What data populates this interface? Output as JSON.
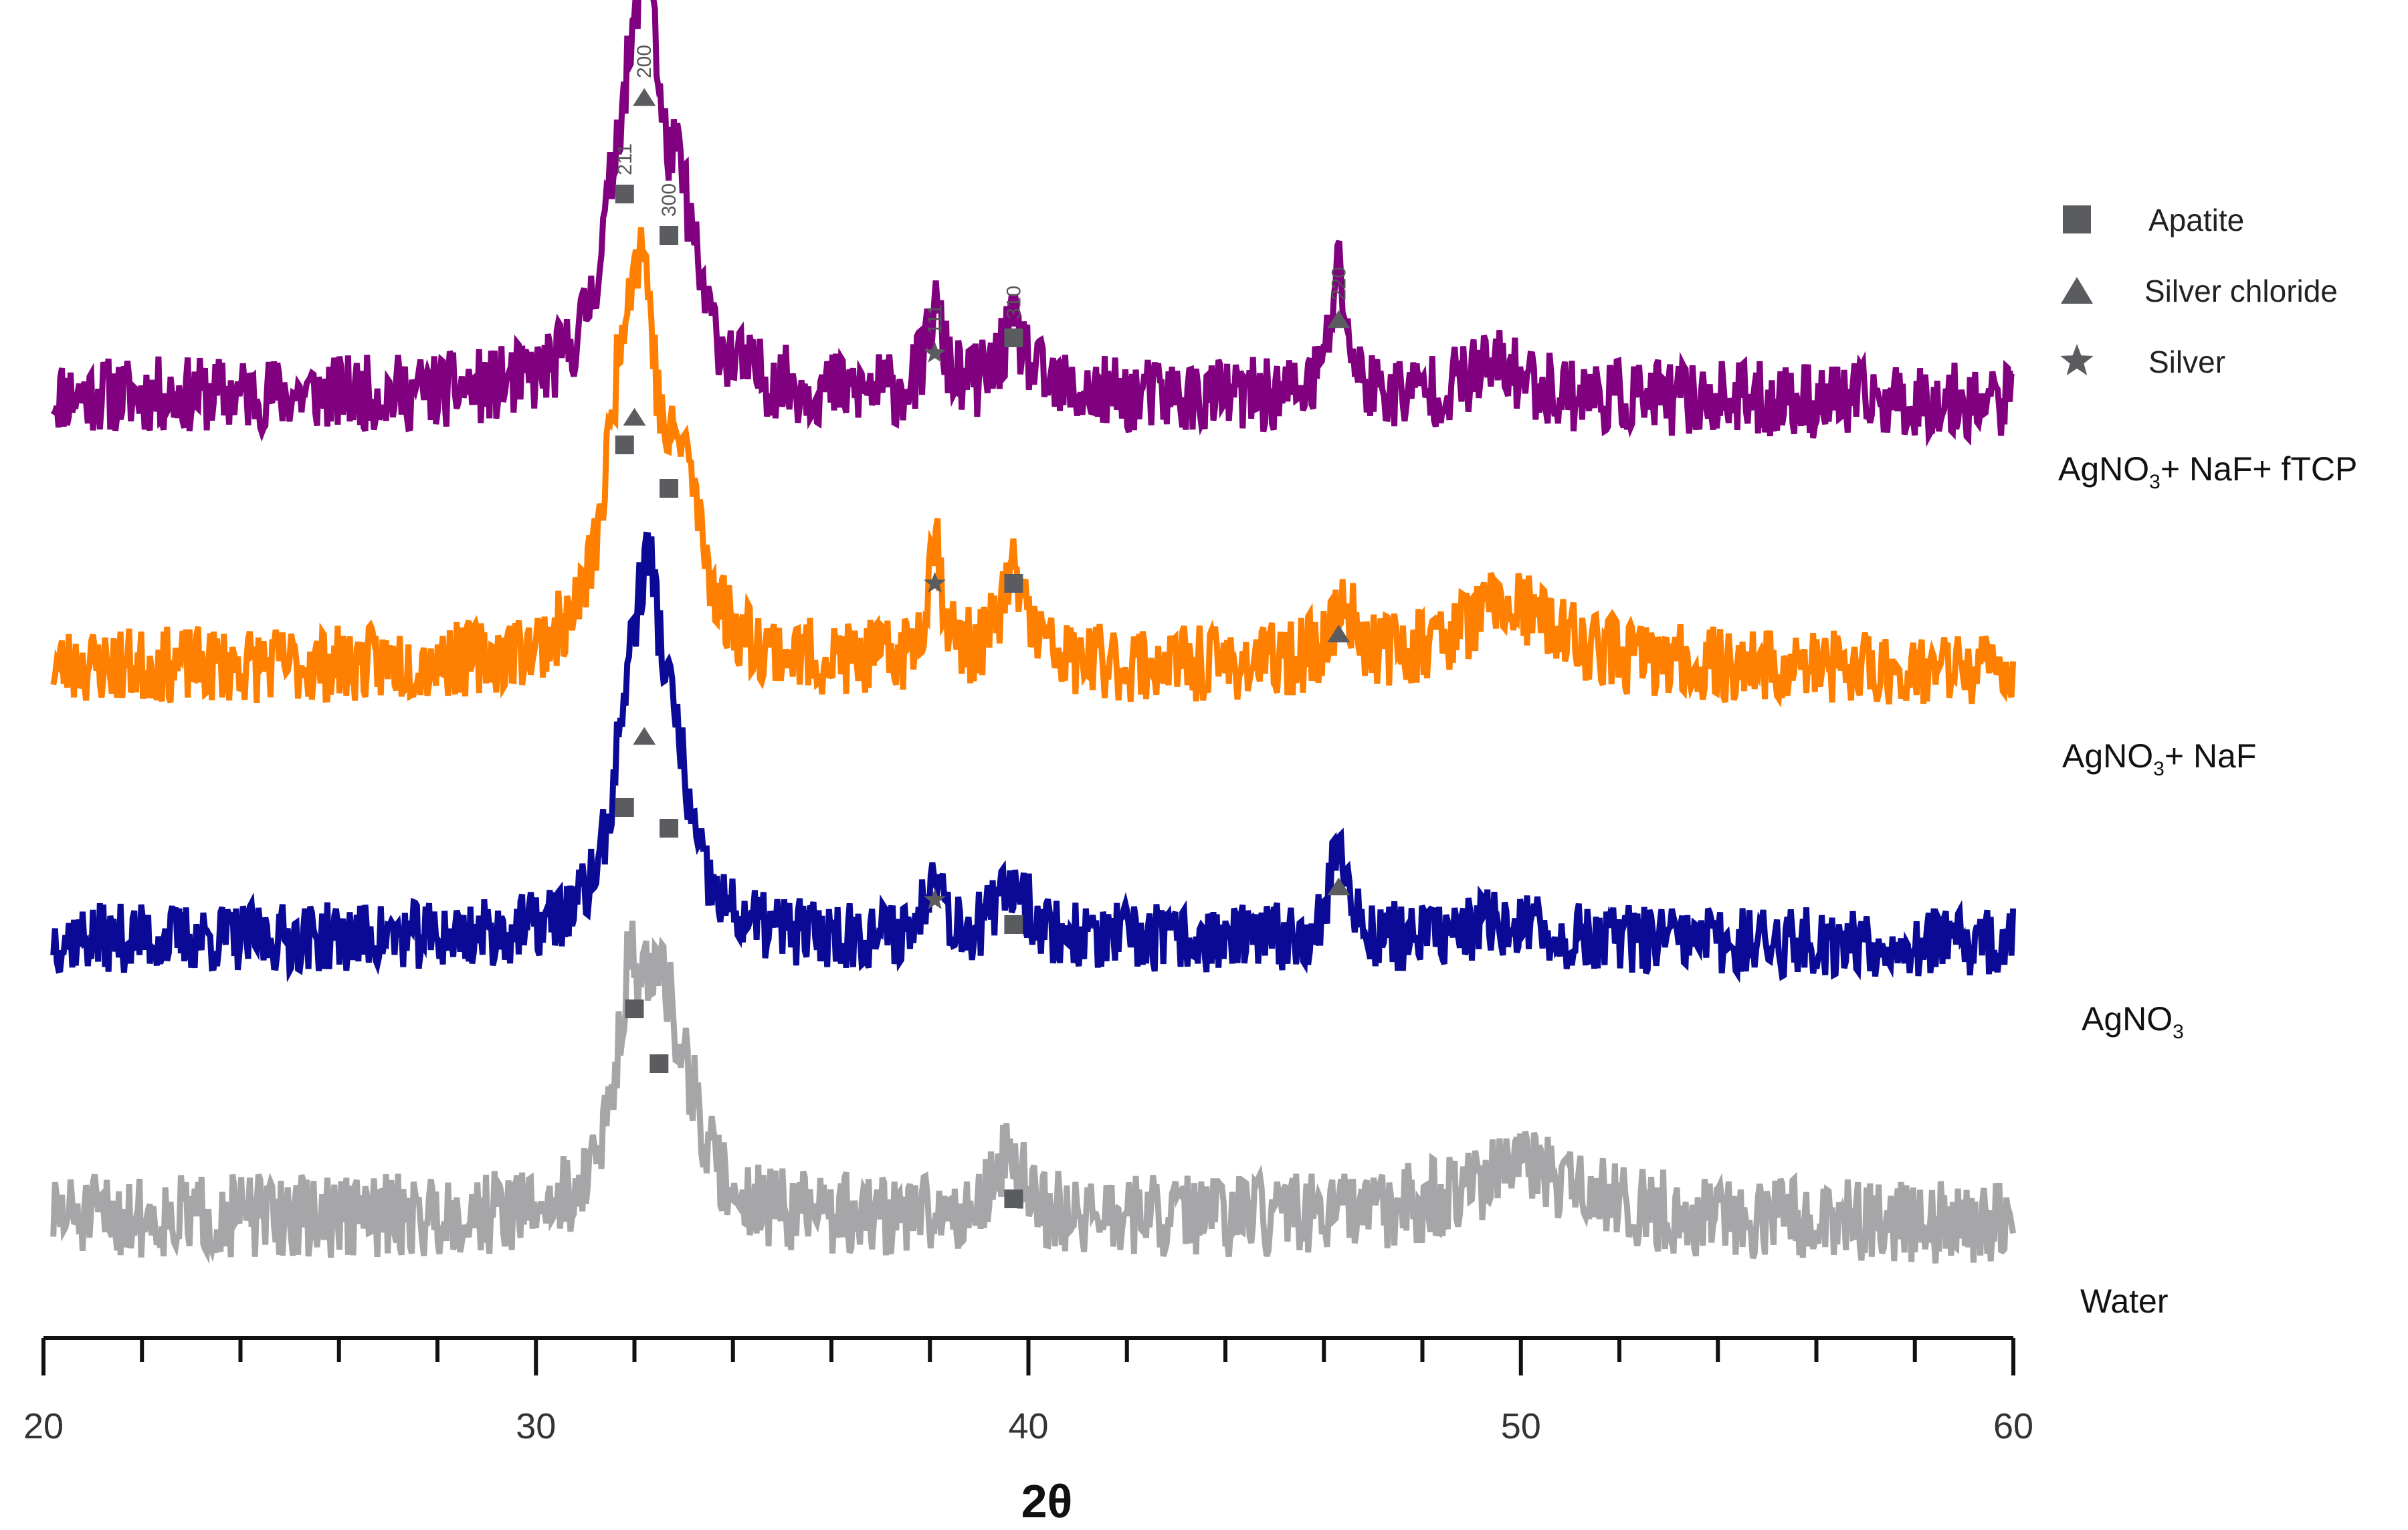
{
  "chart_data": {
    "type": "line",
    "title": "",
    "xlabel": "2θ",
    "ylabel": "",
    "xlim": [
      20,
      60
    ],
    "x_ticks": [
      "20",
      "30",
      "40",
      "50",
      "60"
    ],
    "grid": false,
    "legend_position": "top-right",
    "colors": {
      "water": "#a6a6a8",
      "agno3": "#0a0a96",
      "agno3_naf": "#ff8000",
      "agno3_naf_ftcp": "#800080",
      "marker": "#5a5c60",
      "axis": "#111111"
    },
    "legend": [
      {
        "label": "Apatite",
        "marker": "square"
      },
      {
        "label": "Silver chloride",
        "marker": "triangle"
      },
      {
        "label": "Silver",
        "marker": "star"
      }
    ],
    "series": [
      {
        "name": "AgNO₃+ NaF+ fTCP",
        "label_main": "AgNO",
        "label_sub": "3",
        "label_rest": "+ NaF+ fTCP",
        "key": "agno3_naf_ftcp",
        "baseline": 0.62,
        "noise": 0.55,
        "peaks": [
          {
            "x": 31.8,
            "height": 3.6,
            "width": 0.5
          },
          {
            "x": 32.25,
            "height": 5.5,
            "width": 0.2
          },
          {
            "x": 32.9,
            "height": 2.6,
            "width": 0.45
          },
          {
            "x": 38.1,
            "height": 1.3,
            "width": 0.2
          },
          {
            "x": 39.7,
            "height": 1.0,
            "width": 0.35
          },
          {
            "x": 46.3,
            "height": 2.0,
            "width": 0.2
          },
          {
            "x": 49.5,
            "height": 0.5,
            "width": 0.8
          }
        ]
      },
      {
        "name": "AgNO₃+ NaF",
        "label_main": "AgNO",
        "label_sub": "3",
        "label_rest": "+ NaF",
        "key": "agno3_naf",
        "baseline": 0.52,
        "noise": 0.55,
        "peaks": [
          {
            "x": 31.8,
            "height": 4.1,
            "width": 0.45
          },
          {
            "x": 32.2,
            "height": 3.6,
            "width": 0.3
          },
          {
            "x": 33.0,
            "height": 2.6,
            "width": 0.45
          },
          {
            "x": 38.1,
            "height": 2.0,
            "width": 0.18
          },
          {
            "x": 39.7,
            "height": 1.4,
            "width": 0.35
          },
          {
            "x": 46.4,
            "height": 0.8,
            "width": 0.35
          },
          {
            "x": 49.7,
            "height": 1.0,
            "width": 1.3
          }
        ]
      },
      {
        "name": "AgNO₃",
        "label_main": "AgNO",
        "label_sub": "3",
        "label_rest": "",
        "key": "agno3",
        "baseline": 0.5,
        "noise": 0.5,
        "peaks": [
          {
            "x": 31.9,
            "height": 2.8,
            "width": 0.4
          },
          {
            "x": 32.3,
            "height": 3.8,
            "width": 0.3
          },
          {
            "x": 32.8,
            "height": 2.2,
            "width": 0.4
          },
          {
            "x": 38.1,
            "height": 1.3,
            "width": 0.18
          },
          {
            "x": 39.7,
            "height": 0.9,
            "width": 0.35
          },
          {
            "x": 46.3,
            "height": 1.6,
            "width": 0.2
          },
          {
            "x": 49.6,
            "height": 0.3,
            "width": 0.8
          }
        ]
      },
      {
        "name": "Water",
        "label_main": "Water",
        "label_sub": "",
        "label_rest": "",
        "key": "water",
        "baseline": 0.75,
        "noise": 0.6,
        "peaks": [
          {
            "x": 31.9,
            "height": 3.2,
            "width": 0.35
          },
          {
            "x": 32.5,
            "height": 2.6,
            "width": 0.35
          },
          {
            "x": 33.0,
            "height": 1.5,
            "width": 0.45
          },
          {
            "x": 39.6,
            "height": 1.0,
            "width": 0.35
          },
          {
            "x": 50.0,
            "height": 0.8,
            "width": 1.6
          }
        ]
      }
    ],
    "annotations": [
      {
        "series": "agno3_naf_ftcp",
        "marker": "triangle",
        "x": 32.2,
        "label": "200"
      },
      {
        "series": "agno3_naf_ftcp",
        "marker": "square",
        "x": 31.8,
        "label": "211"
      },
      {
        "series": "agno3_naf_ftcp",
        "marker": "square",
        "x": 32.7,
        "label": "300"
      },
      {
        "series": "agno3_naf_ftcp",
        "marker": "star",
        "x": 38.1,
        "label": "111"
      },
      {
        "series": "agno3_naf_ftcp",
        "marker": "square",
        "x": 39.7,
        "label": "310"
      },
      {
        "series": "agno3_naf_ftcp",
        "marker": "triangle",
        "x": 46.3,
        "label": "220"
      },
      {
        "series": "agno3_naf",
        "marker": "triangle",
        "x": 32.0,
        "label": ""
      },
      {
        "series": "agno3_naf",
        "marker": "square",
        "x": 31.8,
        "label": ""
      },
      {
        "series": "agno3_naf",
        "marker": "square",
        "x": 32.7,
        "label": ""
      },
      {
        "series": "agno3_naf",
        "marker": "star",
        "x": 38.1,
        "label": ""
      },
      {
        "series": "agno3_naf",
        "marker": "square",
        "x": 39.7,
        "label": ""
      },
      {
        "series": "agno3_naf",
        "marker": "triangle",
        "x": 46.3,
        "label": ""
      },
      {
        "series": "agno3",
        "marker": "triangle",
        "x": 32.2,
        "label": ""
      },
      {
        "series": "agno3",
        "marker": "square",
        "x": 31.8,
        "label": ""
      },
      {
        "series": "agno3",
        "marker": "square",
        "x": 32.7,
        "label": ""
      },
      {
        "series": "agno3",
        "marker": "star",
        "x": 38.1,
        "label": ""
      },
      {
        "series": "agno3",
        "marker": "square",
        "x": 39.7,
        "label": ""
      },
      {
        "series": "agno3",
        "marker": "triangle",
        "x": 46.3,
        "label": ""
      },
      {
        "series": "water",
        "marker": "square",
        "x": 32.0,
        "label": ""
      },
      {
        "series": "water",
        "marker": "square",
        "x": 32.5,
        "label": ""
      },
      {
        "series": "water",
        "marker": "square",
        "x": 39.7,
        "label": ""
      }
    ]
  }
}
